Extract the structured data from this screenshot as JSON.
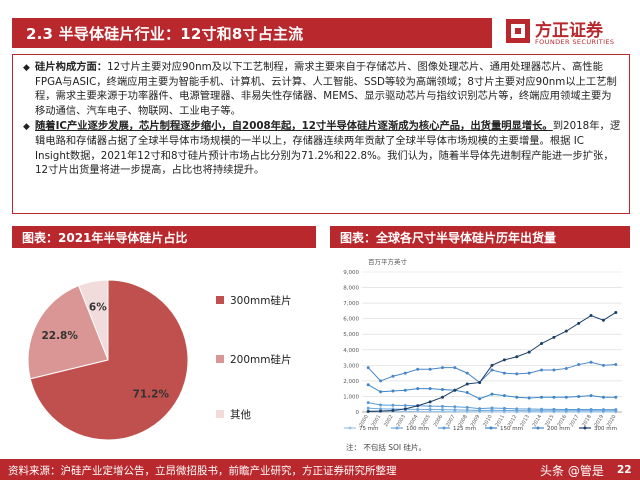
{
  "header": {
    "title": "2.3 半导体硅片行业：12寸和8寸占主流"
  },
  "logo": {
    "cn": "方正证券",
    "en": "FOUNDER SECURITIES"
  },
  "text": {
    "p1_lead": "硅片构成方面：",
    "p1_body": "12寸片主要对应90nm及以下工艺制程，需求主要来自于存储芯片、图像处理芯片、通用处理器芯片、高性能FPGA与ASIC，终端应用主要为智能手机、计算机、云计算、人工智能、SSD等较为高端领域；8寸片主要对应90nm以上工艺制程，需求主要来源于功率器件、电源管理器、非易失性存储器、MEMS、显示驱动芯片与指纹识别芯片等，终端应用领域主要为移动通信、汽车电子、物联网、工业电子等。",
    "p2_lead": "随着IC产业逐步发展，芯片制程逐步缩小，自2008年起，12寸半导体硅片逐渐成为核心产品，出货量明显增长。",
    "p2_body": "到2018年，逻辑电路和存储器占据了全球半导体市场规模的一半以上，存储器连续两年贡献了全球半导体市场规模的主要增量。根据 IC Insight数据，2021年12寸和8寸硅片预计市场占比分别为71.2%和22.8%。我们认为，随着半导体先进制程产能进一步扩张，  12寸片出货量将进一步提高，占比也将持续提升。"
  },
  "left_panel": {
    "title": "图表：2021年半导体硅片占比"
  },
  "right_panel": {
    "title": "图表：全球各尺寸半导体硅片历年出货量",
    "note": "注：  不包括 SOI 硅片。"
  },
  "chart_data": [
    {
      "type": "pie",
      "title": "",
      "labels": [
        "300mm硅片",
        "200mm硅片",
        "其他"
      ],
      "values": [
        71.2,
        22.8,
        6.0
      ],
      "value_labels": [
        "71.2%",
        "22.8%",
        "6%"
      ],
      "colors": [
        "#c0504d",
        "#d99694",
        "#f2dcdb"
      ],
      "legend_placement": "right"
    },
    {
      "type": "line",
      "title": "",
      "unit_label": "百万平方英寸",
      "x": [
        "2000",
        "2001",
        "2002",
        "2003",
        "2004",
        "2005",
        "2006",
        "2007",
        "2008",
        "2009",
        "2010",
        "2011",
        "2012",
        "2013",
        "2014",
        "2015",
        "2016",
        "2017",
        "2018",
        "2019",
        "2020"
      ],
      "ylim": [
        0,
        9000
      ],
      "y_ticks": [
        0,
        1000,
        2000,
        3000,
        4000,
        5000,
        6000,
        7000,
        8000,
        9000
      ],
      "y_tick_labels": [
        "0",
        "1,000",
        "2,000",
        "3,000",
        "4,000",
        "5,000",
        "6,000",
        "7,000",
        "8,000",
        "9,000"
      ],
      "grid": true,
      "legend_placement": "bottom",
      "series": [
        {
          "name": "75 mm",
          "color": "#9fc5e8",
          "values": [
            80,
            60,
            50,
            45,
            40,
            35,
            30,
            25,
            20,
            18,
            15,
            12,
            10,
            10,
            8,
            8,
            8,
            8,
            8,
            8,
            8
          ]
        },
        {
          "name": "100 mm",
          "color": "#6fa8dc",
          "values": [
            250,
            200,
            190,
            180,
            170,
            160,
            150,
            140,
            120,
            100,
            110,
            100,
            90,
            80,
            80,
            80,
            80,
            80,
            80,
            80,
            80
          ]
        },
        {
          "name": "125 mm",
          "color": "#5b9bd5",
          "values": [
            600,
            450,
            430,
            420,
            400,
            380,
            360,
            340,
            300,
            220,
            260,
            230,
            200,
            190,
            180,
            170,
            160,
            160,
            160,
            150,
            150
          ]
        },
        {
          "name": "150 mm",
          "color": "#3d85c6",
          "values": [
            1750,
            1300,
            1350,
            1400,
            1500,
            1500,
            1450,
            1400,
            1250,
            850,
            1150,
            1050,
            950,
            900,
            950,
            950,
            950,
            1000,
            1050,
            950,
            950
          ]
        },
        {
          "name": "200 mm",
          "color": "#4a86c8",
          "values": [
            2850,
            2000,
            2300,
            2500,
            2750,
            2750,
            2850,
            2850,
            2500,
            1900,
            2700,
            2500,
            2450,
            2500,
            2700,
            2700,
            2800,
            3050,
            3200,
            3000,
            3050
          ]
        },
        {
          "name": "300 mm",
          "color": "#1c3f66",
          "values": [
            30,
            60,
            100,
            200,
            400,
            650,
            950,
            1400,
            1800,
            1900,
            3000,
            3350,
            3550,
            3850,
            4400,
            4800,
            5200,
            5700,
            6200,
            5900,
            6400
          ]
        }
      ]
    }
  ],
  "footer": {
    "source": "资料来源：沪硅产业定增公告，立昂微招股书，前瞻产业研究，方正证券研究所整理",
    "watermark": "头条 @管是",
    "page": "22"
  }
}
